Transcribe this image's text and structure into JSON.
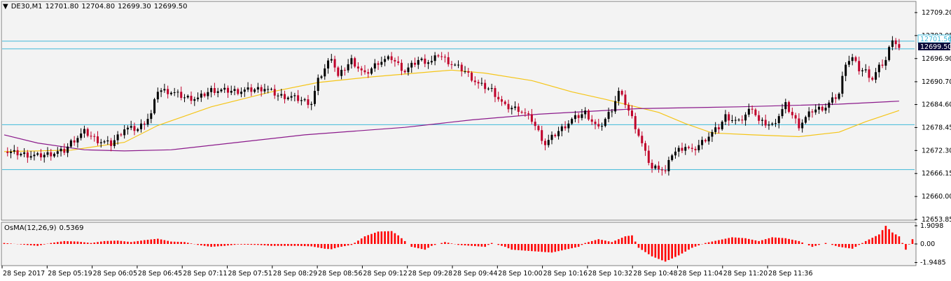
{
  "header": {
    "symbol": "DE30,M1",
    "open": "12701.80",
    "high": "12704.80",
    "low": "12699.30",
    "close": "12699.50"
  },
  "indicator": {
    "name": "OsMA(12,26,9)",
    "value": "0.5369",
    "ticks": [
      "1.9098",
      "0.00",
      "-1.9485"
    ]
  },
  "price_tags": {
    "ask": "12701.56",
    "bid": "12699.50"
  },
  "colors": {
    "bull": "#000000",
    "bear": "#c0002a",
    "ma_fast": "#f5c518",
    "ma_slow": "#8b1a8b",
    "level_line": "#3fb8d8",
    "osma_bar": "#ff0000",
    "bid_tag": "#0a0a3a"
  },
  "chart_data": {
    "type": "candlestick",
    "ylim": [
      12653.85,
      12712.0
    ],
    "y_ticks": [
      "12709.20",
      "12703.05",
      "12696.90",
      "12690.70",
      "12684.60",
      "12678.45",
      "12672.30",
      "12666.15",
      "12660.00",
      "12653.85"
    ],
    "x_ticks": [
      "28 Sep 2017",
      "28 Sep 05:19",
      "28 Sep 06:05",
      "28 Sep 06:45",
      "28 Sep 07:11",
      "28 Sep 07:51",
      "28 Sep 08:29",
      "28 Sep 08:56",
      "28 Sep 09:12",
      "28 Sep 09:28",
      "28 Sep 09:44",
      "28 Sep 10:00",
      "28 Sep 10:16",
      "28 Sep 10:32",
      "28 Sep 10:48",
      "28 Sep 11:04",
      "28 Sep 11:20",
      "28 Sep 11:36"
    ],
    "horizontal_levels": [
      12701.56,
      12699.5,
      12679.2,
      12667.2
    ],
    "close_path": [
      [
        0,
        12672.0
      ],
      [
        5,
        12671.4
      ],
      [
        10,
        12670.8
      ],
      [
        14,
        12671.5
      ],
      [
        18,
        12672.2
      ],
      [
        20,
        12674.5
      ],
      [
        24,
        12677.3
      ],
      [
        28,
        12675.0
      ],
      [
        32,
        12674.0
      ],
      [
        36,
        12678.2
      ],
      [
        40,
        12678.0
      ],
      [
        44,
        12682.0
      ],
      [
        46,
        12688.5
      ],
      [
        50,
        12688.0
      ],
      [
        54,
        12686.5
      ],
      [
        58,
        12686.2
      ],
      [
        62,
        12688.5
      ],
      [
        66,
        12688.3
      ],
      [
        70,
        12688.2
      ],
      [
        74,
        12688.5
      ],
      [
        78,
        12689.0
      ],
      [
        82,
        12687.0
      ],
      [
        86,
        12686.6
      ],
      [
        90,
        12685.5
      ],
      [
        92,
        12685.0
      ],
      [
        94,
        12691.0
      ],
      [
        98,
        12697.5
      ],
      [
        100,
        12692.0
      ],
      [
        104,
        12696.5
      ],
      [
        108,
        12692.5
      ],
      [
        112,
        12696.0
      ],
      [
        116,
        12697.0
      ],
      [
        120,
        12693.5
      ],
      [
        124,
        12696.5
      ],
      [
        128,
        12696.0
      ],
      [
        130,
        12698.0
      ],
      [
        134,
        12695.5
      ],
      [
        138,
        12693.5
      ],
      [
        142,
        12690.0
      ],
      [
        146,
        12688.5
      ],
      [
        150,
        12684.0
      ],
      [
        154,
        12683.4
      ],
      [
        156,
        12682.0
      ],
      [
        158,
        12680.5
      ],
      [
        162,
        12674.0
      ],
      [
        166,
        12677.5
      ],
      [
        170,
        12680.5
      ],
      [
        174,
        12682.5
      ],
      [
        178,
        12678.0
      ],
      [
        182,
        12683.5
      ],
      [
        184,
        12688.0
      ],
      [
        186,
        12685.0
      ],
      [
        188,
        12681.0
      ],
      [
        190,
        12676.5
      ],
      [
        192,
        12671.5
      ],
      [
        194,
        12667.5
      ],
      [
        196,
        12668.0
      ],
      [
        198,
        12666.5
      ],
      [
        200,
        12671.5
      ],
      [
        204,
        12673.5
      ],
      [
        206,
        12672.0
      ],
      [
        210,
        12675.5
      ],
      [
        214,
        12678.5
      ],
      [
        216,
        12681.5
      ],
      [
        220,
        12679.8
      ],
      [
        224,
        12684.0
      ],
      [
        226,
        12680.0
      ],
      [
        230,
        12679.0
      ],
      [
        234,
        12684.5
      ],
      [
        238,
        12679.0
      ],
      [
        242,
        12683.0
      ],
      [
        246,
        12684.0
      ],
      [
        250,
        12687.5
      ],
      [
        252,
        12696.0
      ],
      [
        254,
        12697.0
      ],
      [
        256,
        12694.0
      ],
      [
        258,
        12693.5
      ],
      [
        260,
        12691.5
      ],
      [
        262,
        12694.5
      ],
      [
        264,
        12696.5
      ],
      [
        266,
        12702.5
      ],
      [
        268,
        12699.5
      ]
    ],
    "moving_averages": [
      {
        "values": [
          [
            0,
            12672.0
          ],
          [
            20,
            12672.4
          ],
          [
            36,
            12674.5
          ],
          [
            46,
            12679.0
          ],
          [
            62,
            12684.0
          ],
          [
            80,
            12688.0
          ],
          [
            94,
            12690.5
          ],
          [
            110,
            12692.0
          ],
          [
            130,
            12693.5
          ],
          [
            134,
            12693.8
          ],
          [
            144,
            12693.0
          ],
          [
            158,
            12691.0
          ],
          [
            170,
            12688.0
          ],
          [
            180,
            12686.0
          ],
          [
            196,
            12682.5
          ],
          [
            204,
            12679.5
          ],
          [
            212,
            12677.0
          ],
          [
            224,
            12676.5
          ],
          [
            238,
            12676.0
          ],
          [
            250,
            12677.2
          ],
          [
            258,
            12680.0
          ],
          [
            268,
            12683.0
          ]
        ]
      },
      {
        "values": [
          [
            0,
            12676.5
          ],
          [
            10,
            12674.3
          ],
          [
            24,
            12672.5
          ],
          [
            36,
            12672.2
          ],
          [
            50,
            12672.5
          ],
          [
            70,
            12674.5
          ],
          [
            90,
            12676.5
          ],
          [
            120,
            12678.5
          ],
          [
            140,
            12680.5
          ],
          [
            160,
            12682.0
          ],
          [
            190,
            12683.5
          ],
          [
            220,
            12684.0
          ],
          [
            250,
            12684.7
          ],
          [
            268,
            12685.5
          ]
        ]
      }
    ],
    "osma": {
      "ylim": [
        -2.2,
        2.2
      ],
      "values": [
        [
          0,
          0.1
        ],
        [
          5,
          -0.05
        ],
        [
          10,
          -0.2
        ],
        [
          14,
          0.1
        ],
        [
          18,
          0.3
        ],
        [
          22,
          0.25
        ],
        [
          26,
          0.1
        ],
        [
          30,
          0.3
        ],
        [
          34,
          0.35
        ],
        [
          38,
          0.2
        ],
        [
          42,
          0.4
        ],
        [
          46,
          0.55
        ],
        [
          50,
          0.25
        ],
        [
          54,
          0.2
        ],
        [
          58,
          -0.1
        ],
        [
          62,
          -0.3
        ],
        [
          66,
          -0.2
        ],
        [
          70,
          -0.05
        ],
        [
          76,
          -0.1
        ],
        [
          80,
          -0.2
        ],
        [
          84,
          -0.2
        ],
        [
          88,
          -0.2
        ],
        [
          92,
          -0.25
        ],
        [
          96,
          -0.5
        ],
        [
          98,
          -0.55
        ],
        [
          100,
          -0.35
        ],
        [
          104,
          -0.1
        ],
        [
          108,
          0.8
        ],
        [
          112,
          1.3
        ],
        [
          116,
          1.35
        ],
        [
          118,
          0.9
        ],
        [
          122,
          -0.3
        ],
        [
          126,
          -0.6
        ],
        [
          128,
          -0.2
        ],
        [
          132,
          0.2
        ],
        [
          136,
          -0.1
        ],
        [
          140,
          -0.2
        ],
        [
          144,
          -0.3
        ],
        [
          146,
          0.1
        ],
        [
          150,
          -0.3
        ],
        [
          152,
          -0.6
        ],
        [
          156,
          -0.7
        ],
        [
          160,
          -0.8
        ],
        [
          164,
          -0.9
        ],
        [
          168,
          -0.6
        ],
        [
          172,
          -0.3
        ],
        [
          174,
          0.1
        ],
        [
          178,
          0.5
        ],
        [
          182,
          0.2
        ],
        [
          186,
          0.8
        ],
        [
          188,
          0.9
        ],
        [
          190,
          -0.4
        ],
        [
          194,
          -1.3
        ],
        [
          198,
          -1.85
        ],
        [
          202,
          -1.2
        ],
        [
          206,
          -0.4
        ],
        [
          210,
          0.1
        ],
        [
          214,
          0.4
        ],
        [
          218,
          0.7
        ],
        [
          222,
          0.6
        ],
        [
          226,
          0.3
        ],
        [
          230,
          0.7
        ],
        [
          234,
          0.6
        ],
        [
          238,
          0.3
        ],
        [
          242,
          -0.3
        ],
        [
          246,
          0.1
        ],
        [
          250,
          -0.3
        ],
        [
          254,
          -0.5
        ],
        [
          258,
          0.3
        ],
        [
          262,
          1.0
        ],
        [
          264,
          1.9
        ],
        [
          266,
          1.2
        ],
        [
          268,
          0.8
        ],
        [
          270,
          -0.6
        ],
        [
          272,
          0.5
        ]
      ]
    }
  }
}
